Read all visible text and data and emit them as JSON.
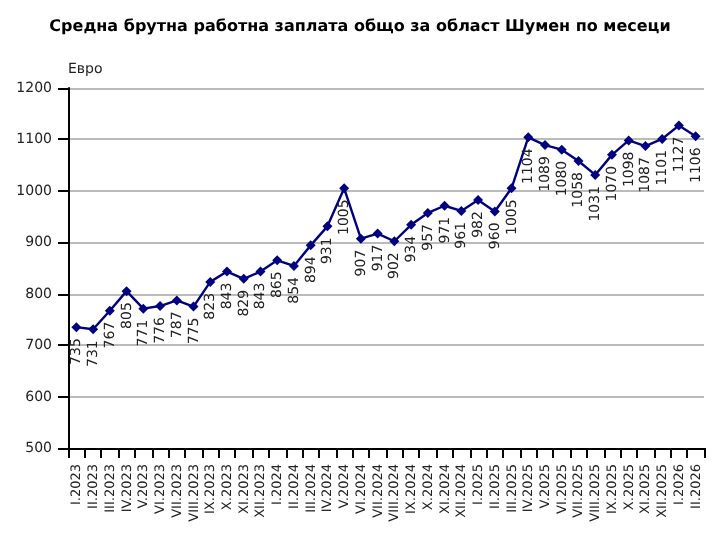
{
  "chart_data": {
    "type": "line",
    "title": "Средна брутна работна заплата общо за област Шумен по месеци",
    "ylabel": "Евро",
    "categories": [
      "I.2023",
      "II.2023",
      "III.2023",
      "IV.2023",
      "V.2023",
      "VI.2023",
      "VII.2023",
      "VIII.2023",
      "IX.2023",
      "X.2023",
      "XI.2023",
      "XII.2023",
      "I.2024",
      "II.2024",
      "III.2024",
      "IV.2024",
      "V.2024",
      "VI.2024",
      "VII.2024",
      "VIII.2024",
      "IX.2024",
      "X.2024",
      "XI.2024",
      "XII.2024",
      "I.2025",
      "II.2025",
      "III.2025",
      "IV.2025",
      "V.2025",
      "VI.2025",
      "VII.2025",
      "VIII.2025",
      "IX.2025",
      "X.2025",
      "XI.2025",
      "XII.2025",
      "I.2026",
      "II.2026"
    ],
    "series": [
      {
        "color": "#000080",
        "values": [
          735,
          731,
          767,
          805,
          771,
          776,
          787,
          775,
          823,
          843,
          829,
          843,
          865,
          854,
          894,
          931,
          1005,
          907,
          917,
          902,
          934,
          957,
          971,
          961,
          982,
          960,
          1005,
          1104,
          1089,
          1080,
          1058,
          1031,
          1070,
          1098,
          1087,
          1101,
          1127,
          1106
        ]
      }
    ],
    "ylim": [
      500,
      1200
    ],
    "yticks": [
      500,
      600,
      700,
      800,
      900,
      1000,
      1100,
      1200
    ],
    "grid": "y",
    "marker": "diamond",
    "line_style": "solid",
    "data_labels": true
  }
}
